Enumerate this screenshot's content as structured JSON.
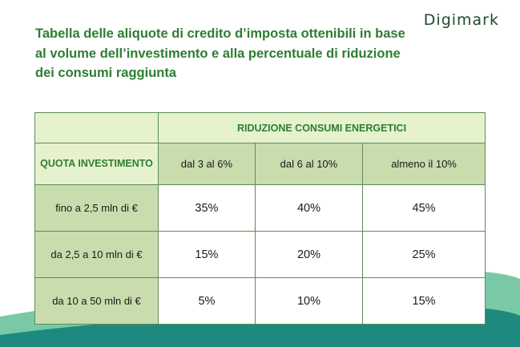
{
  "brand": {
    "logo_text": "Digimark"
  },
  "title": "Tabella delle aliquote di credito d’imposta ottenibili in base al volume dell’investimento e alla percentuale di riduzione dei consumi raggiunta",
  "table": {
    "group_header": "RIDUZIONE CONSUMI ENERGETICI",
    "row_header": "QUOTA INVESTIMENTO",
    "columns": [
      "dal 3 al 6%",
      "dal 6 al 10%",
      "almeno il 10%"
    ],
    "rows": [
      {
        "label": "fino a 2,5 mln di €",
        "values": [
          "35%",
          "40%",
          "45%"
        ]
      },
      {
        "label": "da 2,5 a 10 mln di €",
        "values": [
          "15%",
          "20%",
          "25%"
        ]
      },
      {
        "label": "da 10 a 50 mln di €",
        "values": [
          "5%",
          "10%",
          "15%"
        ]
      }
    ]
  },
  "colors": {
    "title_green": "#2e7d32",
    "header_light": "#e6f2cd",
    "header_mid": "#c9dcad",
    "border": "#5e8c55",
    "wave_light": "#79c9a6",
    "wave_dark": "#1e8a7f"
  }
}
